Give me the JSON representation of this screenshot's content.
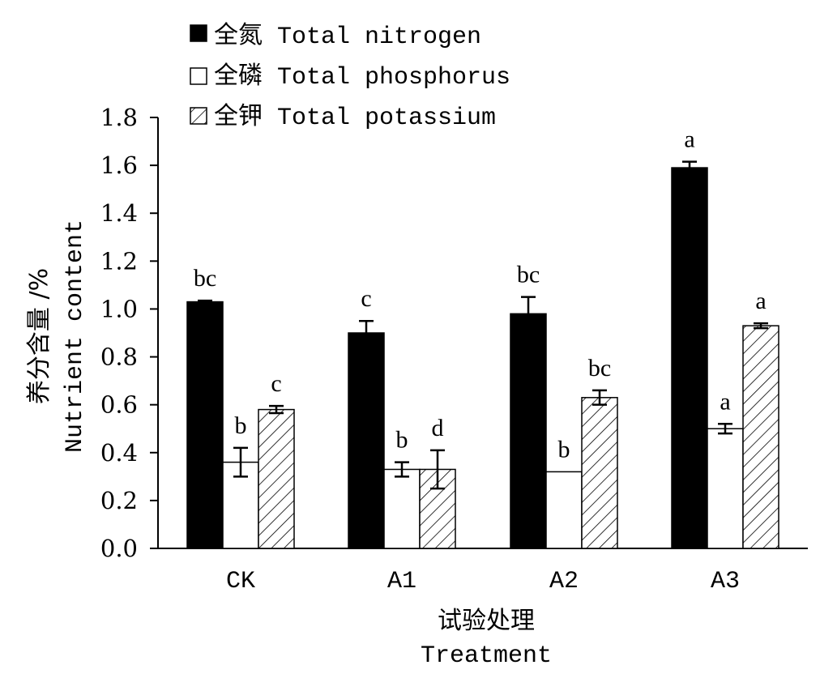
{
  "chart_data": {
    "type": "bar",
    "categories": [
      "CK",
      "A1",
      "A2",
      "A3"
    ],
    "series": [
      {
        "name": "全氮 Total nitrogen",
        "fill": "solid",
        "values": [
          1.03,
          0.9,
          0.98,
          1.59
        ],
        "errors": [
          0.005,
          0.05,
          0.07,
          0.025
        ],
        "letters": [
          "bc",
          "c",
          "bc",
          "a"
        ]
      },
      {
        "name": "全磷 Total phosphorus",
        "fill": "open",
        "values": [
          0.36,
          0.33,
          0.32,
          0.5
        ],
        "errors": [
          0.06,
          0.03,
          0.0,
          0.02
        ],
        "letters": [
          "b",
          "b",
          "b",
          "a"
        ]
      },
      {
        "name": "全钾 Total potassium",
        "fill": "hatched",
        "values": [
          0.58,
          0.33,
          0.63,
          0.93
        ],
        "errors": [
          0.015,
          0.08,
          0.03,
          0.01
        ],
        "letters": [
          "c",
          "d",
          "bc",
          "a"
        ]
      }
    ],
    "yticks": [
      "0.0",
      "0.2",
      "0.4",
      "0.6",
      "0.8",
      "1.0",
      "1.2",
      "1.4",
      "1.6",
      "1.8"
    ],
    "ylim": [
      0,
      1.8
    ],
    "ylabel_cn": "养分含量 /%",
    "ylabel_en": "Nutrient content",
    "xlabel_cn": "试验处理",
    "xlabel_en": "Treatment",
    "legend_position": "top-left",
    "grid": false
  }
}
